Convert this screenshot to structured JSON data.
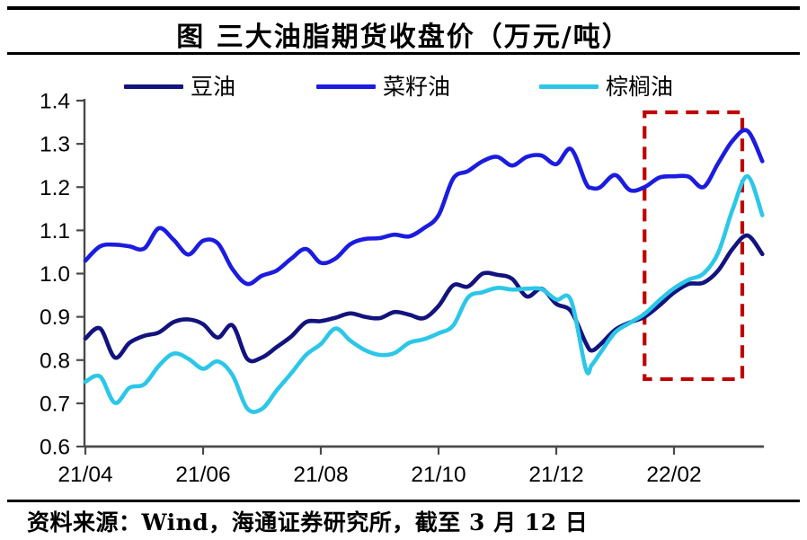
{
  "header": {
    "title": "图  三大油脂期货收盘价（万元/吨）"
  },
  "footer": {
    "source_text": "资料来源：Wind，海通证券研究所，截至 3 月 12 日"
  },
  "colors": {
    "axis": "#4a4a4a",
    "label_text": "#000000",
    "highlight": "#c00000"
  },
  "chart_data": {
    "type": "line",
    "title": "三大油脂期货收盘价（万元/吨）",
    "xlabel": "",
    "ylabel": "",
    "ylim": [
      0.6,
      1.4
    ],
    "xlim_months": [
      4.0,
      15.53
    ],
    "grid": false,
    "legend_position": "top",
    "x_unit": "month (4 = 2021-04, 14 = 2022-02)",
    "y_ticks": [
      0.6,
      0.7,
      0.8,
      0.9,
      1.0,
      1.1,
      1.2,
      1.3,
      1.4
    ],
    "x_ticks": [
      {
        "m": 4,
        "label": "21/04"
      },
      {
        "m": 6,
        "label": "21/06"
      },
      {
        "m": 8,
        "label": "21/08"
      },
      {
        "m": 10,
        "label": "21/10"
      },
      {
        "m": 12,
        "label": "21/12"
      },
      {
        "m": 14,
        "label": "22/02"
      }
    ],
    "x": [
      4,
      4.25,
      4.5,
      4.75,
      5,
      5.25,
      5.5,
      5.75,
      6,
      6.25,
      6.5,
      6.75,
      7,
      7.25,
      7.5,
      7.75,
      8,
      8.25,
      8.5,
      8.75,
      9,
      9.25,
      9.5,
      9.75,
      10,
      10.25,
      10.5,
      10.75,
      11,
      11.25,
      11.5,
      11.75,
      12,
      12.25,
      12.5,
      12.6,
      12.75,
      13,
      13.25,
      13.5,
      13.75,
      14,
      14.25,
      14.5,
      14.75,
      15,
      15.25,
      15.5
    ],
    "series": [
      {
        "id": "soybean_oil",
        "name": "豆油",
        "color": "#13137e",
        "values": [
          0.85,
          0.873,
          0.806,
          0.84,
          0.856,
          0.864,
          0.888,
          0.894,
          0.883,
          0.852,
          0.88,
          0.803,
          0.806,
          0.83,
          0.855,
          0.888,
          0.89,
          0.898,
          0.908,
          0.9,
          0.897,
          0.911,
          0.905,
          0.897,
          0.925,
          0.973,
          0.97,
          1.0,
          0.997,
          0.988,
          0.947,
          0.965,
          0.93,
          0.913,
          0.84,
          0.822,
          0.836,
          0.87,
          0.887,
          0.9,
          0.926,
          0.956,
          0.976,
          0.979,
          1.007,
          1.058,
          1.088,
          1.045
        ]
      },
      {
        "id": "rapeseed_oil",
        "name": "菜籽油",
        "color": "#1c1ce0",
        "values": [
          1.03,
          1.063,
          1.067,
          1.063,
          1.058,
          1.105,
          1.078,
          1.044,
          1.076,
          1.07,
          1.01,
          0.976,
          0.995,
          1.007,
          1.035,
          1.057,
          1.025,
          1.035,
          1.068,
          1.08,
          1.082,
          1.09,
          1.086,
          1.105,
          1.135,
          1.22,
          1.237,
          1.26,
          1.27,
          1.25,
          1.27,
          1.273,
          1.253,
          1.288,
          1.21,
          1.198,
          1.2,
          1.228,
          1.193,
          1.2,
          1.222,
          1.225,
          1.224,
          1.2,
          1.255,
          1.308,
          1.33,
          1.26
        ]
      },
      {
        "id": "palm_oil",
        "name": "棕榈油",
        "color": "#2cc7e8",
        "values": [
          0.75,
          0.762,
          0.701,
          0.736,
          0.744,
          0.787,
          0.815,
          0.803,
          0.78,
          0.797,
          0.765,
          0.688,
          0.687,
          0.73,
          0.77,
          0.812,
          0.837,
          0.873,
          0.845,
          0.823,
          0.812,
          0.816,
          0.84,
          0.848,
          0.862,
          0.88,
          0.945,
          0.957,
          0.967,
          0.963,
          0.965,
          0.964,
          0.94,
          0.938,
          0.78,
          0.788,
          0.817,
          0.864,
          0.886,
          0.907,
          0.938,
          0.966,
          0.986,
          1.0,
          1.048,
          1.15,
          1.225,
          1.135
        ]
      }
    ],
    "highlight_box": {
      "x0": 13.5,
      "x1": 15.16,
      "y0": 0.756,
      "y1": 1.373,
      "color": "#c00000",
      "style": "dashed"
    }
  }
}
